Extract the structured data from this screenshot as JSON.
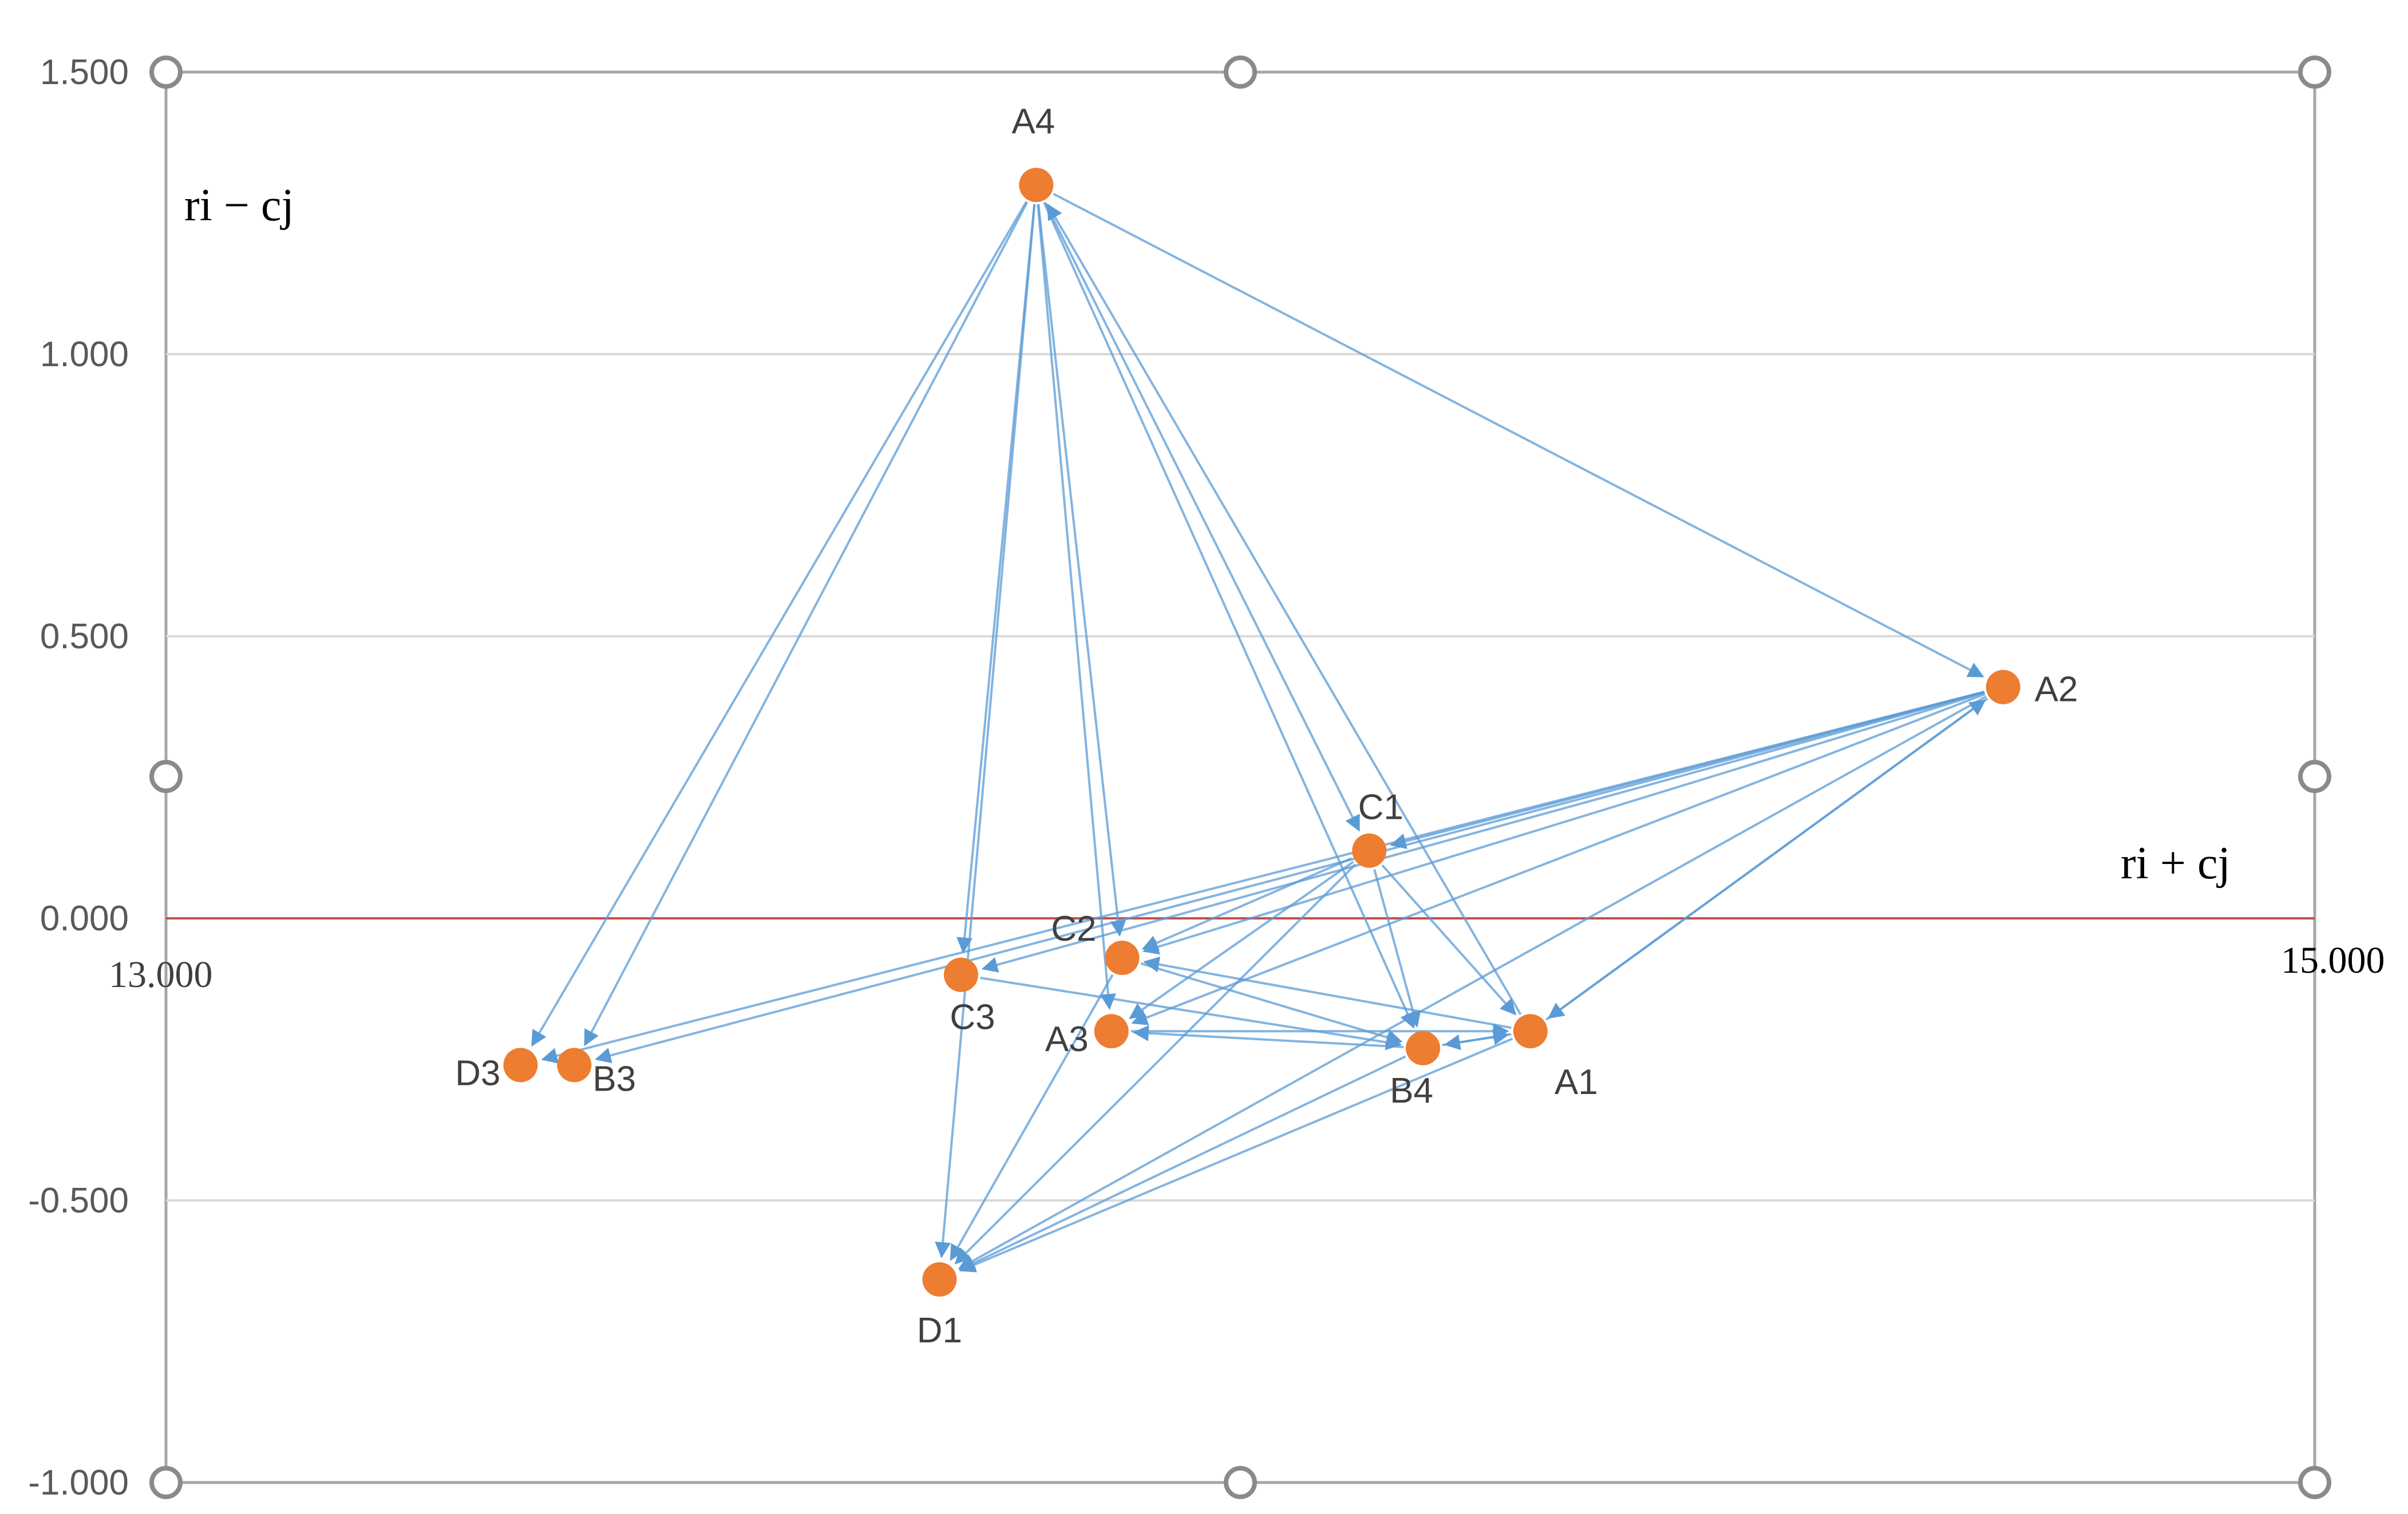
{
  "chart_data": {
    "type": "scatter",
    "title": "",
    "xlabel": "ri + cj",
    "ylabel": "ri − cj",
    "xlim": [
      13,
      15
    ],
    "ylim": [
      -1,
      1.5
    ],
    "x_tick_labels": [
      "13.000",
      "15.000"
    ],
    "y_ticks": [
      1.5,
      1.0,
      0.5,
      0.0,
      -0.5,
      -1.0
    ],
    "y_tick_labels": [
      "1.500",
      "1.000",
      "0.500",
      "0.000",
      "-0.500",
      "-1.000"
    ],
    "grid": "horizontal",
    "axis_line_color": "#c0504d",
    "point_color": "#ed7d31",
    "arrow_color": "#5b9bd5",
    "points": [
      {
        "label": "A4",
        "x": 13.81,
        "y": 1.3
      },
      {
        "label": "A2",
        "x": 14.71,
        "y": 0.41
      },
      {
        "label": "C1",
        "x": 14.12,
        "y": 0.12
      },
      {
        "label": "C2",
        "x": 13.89,
        "y": -0.07
      },
      {
        "label": "C3",
        "x": 13.74,
        "y": -0.1
      },
      {
        "label": "A3",
        "x": 13.88,
        "y": -0.2
      },
      {
        "label": "B4",
        "x": 14.17,
        "y": -0.23
      },
      {
        "label": "A1",
        "x": 14.27,
        "y": -0.2
      },
      {
        "label": "D3",
        "x": 13.33,
        "y": -0.26
      },
      {
        "label": "B3",
        "x": 13.38,
        "y": -0.26
      },
      {
        "label": "D1",
        "x": 13.72,
        "y": -0.64
      }
    ],
    "links": [
      [
        "A4",
        "D3"
      ],
      [
        "A4",
        "B3"
      ],
      [
        "A4",
        "C3"
      ],
      [
        "A4",
        "A3"
      ],
      [
        "A4",
        "C2"
      ],
      [
        "A4",
        "C1"
      ],
      [
        "A4",
        "B4"
      ],
      [
        "A4",
        "A2"
      ],
      [
        "A4",
        "D1"
      ],
      [
        "A1",
        "A4"
      ],
      [
        "A2",
        "C1"
      ],
      [
        "A2",
        "A3"
      ],
      [
        "A2",
        "C2"
      ],
      [
        "A2",
        "A1"
      ],
      [
        "A2",
        "D3"
      ],
      [
        "A2",
        "B3"
      ],
      [
        "A2",
        "C3"
      ],
      [
        "A2",
        "D1"
      ],
      [
        "A1",
        "A2"
      ],
      [
        "C1",
        "C2"
      ],
      [
        "C1",
        "A3"
      ],
      [
        "C1",
        "B4"
      ],
      [
        "C1",
        "A1"
      ],
      [
        "C1",
        "D1"
      ],
      [
        "C3",
        "B4"
      ],
      [
        "C2",
        "B4"
      ],
      [
        "B4",
        "A3"
      ],
      [
        "B4",
        "A1"
      ],
      [
        "A1",
        "B4"
      ],
      [
        "A1",
        "C2"
      ],
      [
        "A1",
        "D1"
      ],
      [
        "B4",
        "D1"
      ],
      [
        "C2",
        "D1"
      ],
      [
        "A3",
        "A1"
      ]
    ]
  }
}
